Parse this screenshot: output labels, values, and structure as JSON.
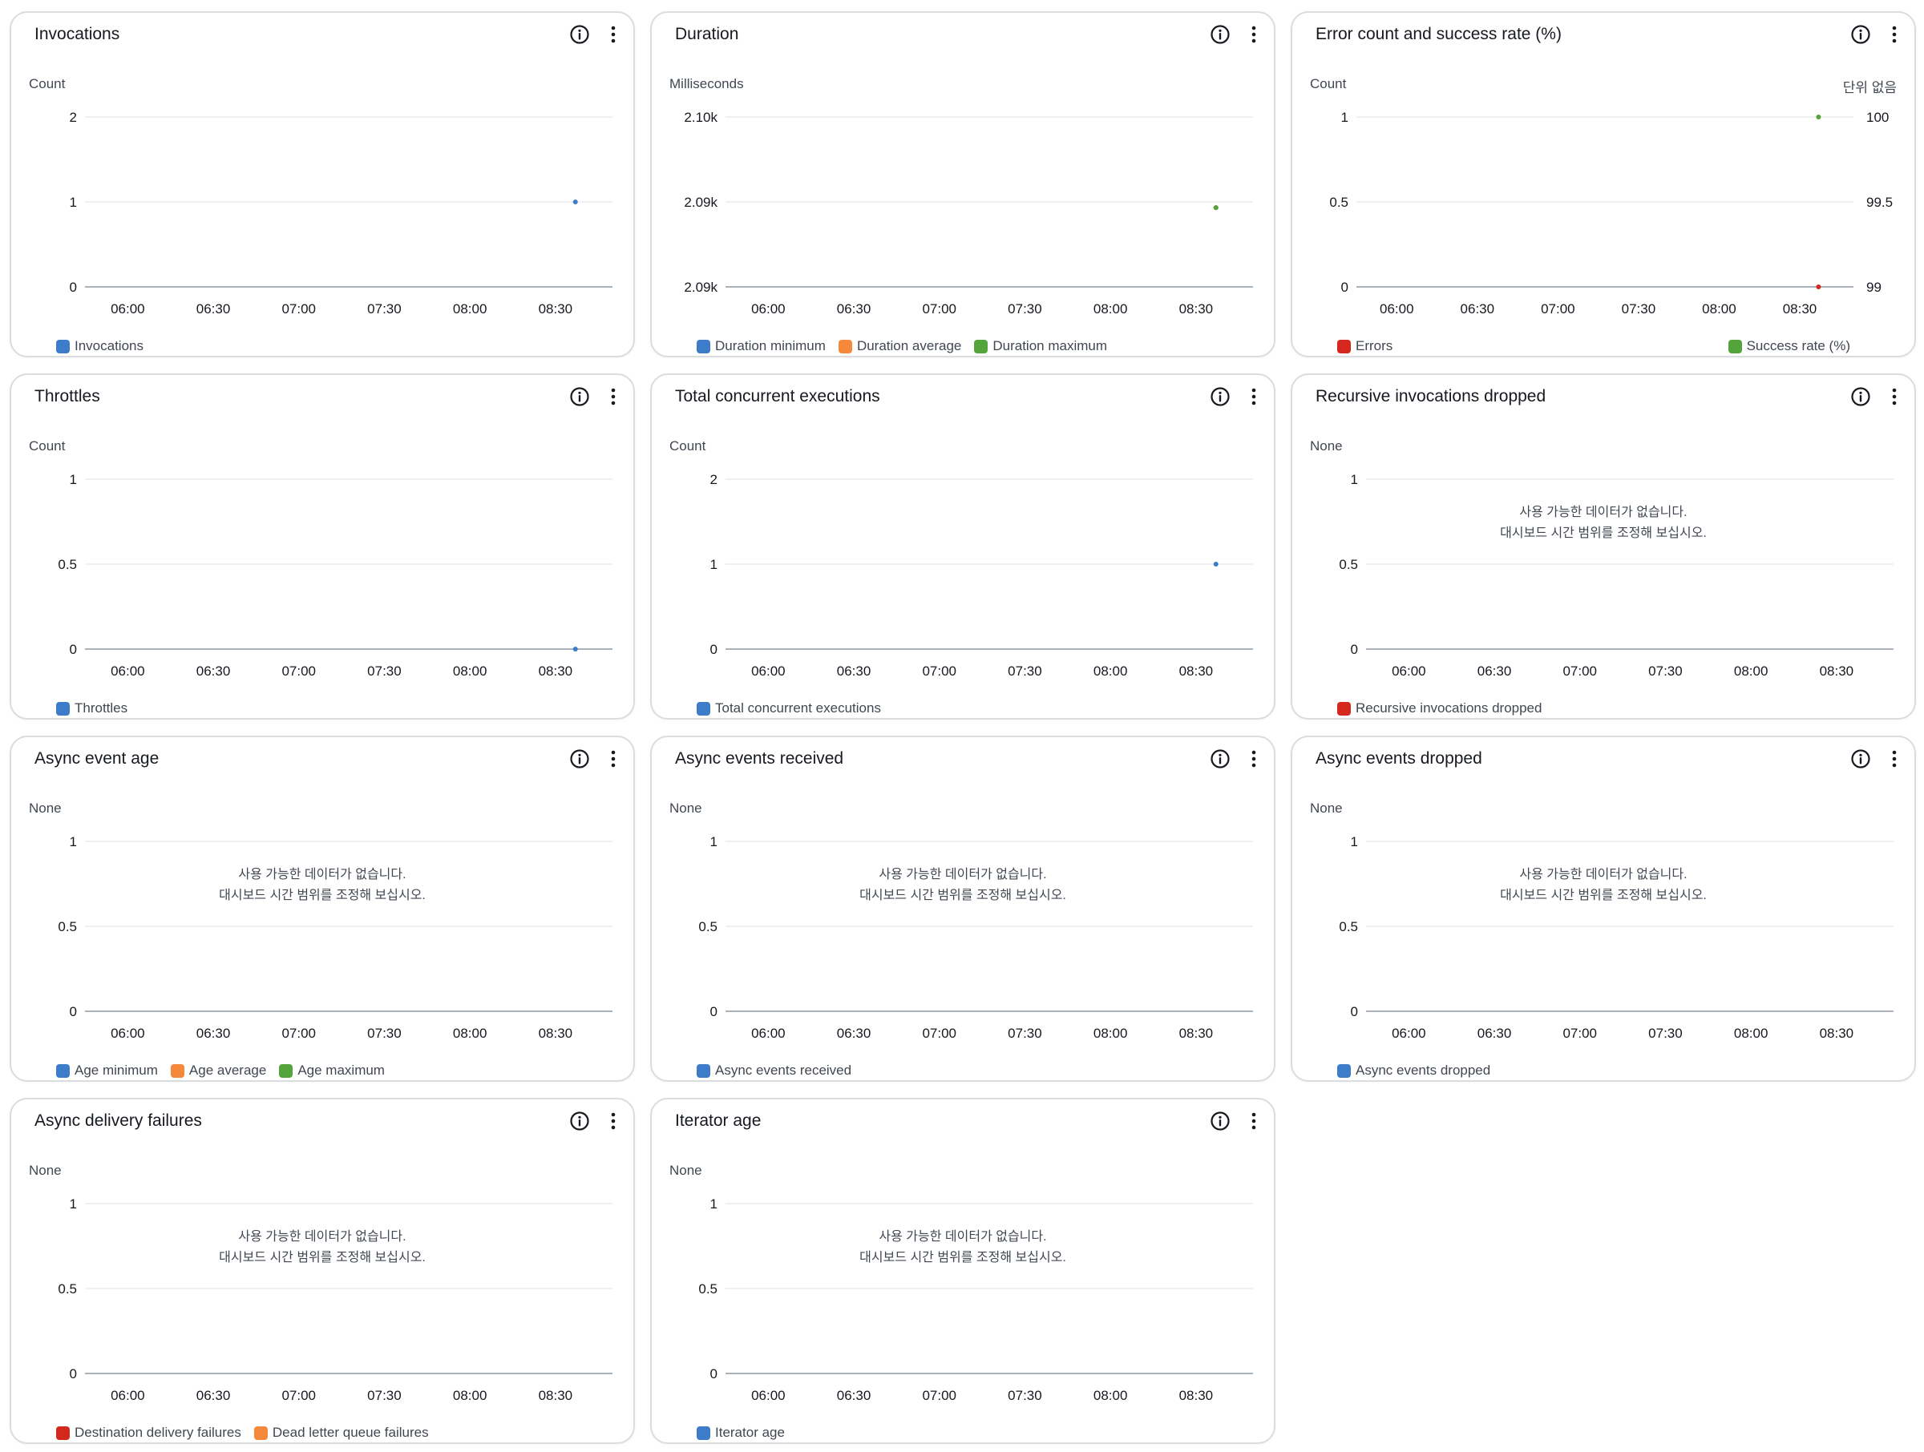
{
  "no_data_message": {
    "line1": "사용 가능한 데이터가 없습니다.",
    "line2": "대시보드 시간 범위를 조정해 보십시오."
  },
  "colors": {
    "blue": "#3d7cc9",
    "orange": "#f5883b",
    "green": "#54a43c",
    "red": "#d4281e"
  },
  "time_ticks": [
    "06:00",
    "06:30",
    "07:00",
    "07:30",
    "08:00",
    "08:30"
  ],
  "widgets": [
    {
      "title": "Invocations",
      "unit": "Count",
      "y_ticks": [
        "0",
        "1",
        "2"
      ],
      "no_data": false,
      "legend": [
        {
          "label": "Invocations",
          "color": "#3d7cc9"
        }
      ],
      "chart_data": {
        "type": "scatter",
        "ylim": [
          0,
          2
        ],
        "series": [
          {
            "name": "Invocations",
            "color": "#3d7cc9",
            "x": [
              "08:37"
            ],
            "values": [
              1
            ]
          }
        ]
      }
    },
    {
      "title": "Duration",
      "unit": "Milliseconds",
      "y_ticks": [
        "2.09k",
        "2.09k",
        "2.10k"
      ],
      "no_data": false,
      "legend": [
        {
          "label": "Duration minimum",
          "color": "#3d7cc9"
        },
        {
          "label": "Duration average",
          "color": "#f5883b"
        },
        {
          "label": "Duration maximum",
          "color": "#54a43c"
        }
      ],
      "chart_data": {
        "type": "scatter",
        "ylim": [
          2085,
          2100
        ],
        "series": [
          {
            "name": "Duration minimum",
            "color": "#3d7cc9",
            "x": [
              "08:37"
            ],
            "values": [
              2092
            ]
          },
          {
            "name": "Duration average",
            "color": "#f5883b",
            "x": [
              "08:37"
            ],
            "values": [
              2092
            ]
          },
          {
            "name": "Duration maximum",
            "color": "#54a43c",
            "x": [
              "08:37"
            ],
            "values": [
              2092
            ]
          }
        ]
      }
    },
    {
      "title": "Error count and success rate (%)",
      "unit": "Count",
      "unit_right": "단위 없음",
      "y_ticks": [
        "0",
        "0.5",
        "1"
      ],
      "y_ticks_right": [
        "99",
        "99.5",
        "100"
      ],
      "no_data": false,
      "legend": [
        {
          "label": "Errors",
          "color": "#d4281e"
        },
        {
          "label": "Success rate (%)",
          "color": "#54a43c",
          "align": "right"
        }
      ],
      "chart_data": {
        "type": "scatter",
        "ylim": [
          0,
          1
        ],
        "ylim_right": [
          99,
          100
        ],
        "series": [
          {
            "name": "Errors",
            "color": "#d4281e",
            "x": [
              "08:37"
            ],
            "values": [
              0
            ]
          },
          {
            "name": "Success rate (%)",
            "color": "#54a43c",
            "axis": "right",
            "x": [
              "08:37"
            ],
            "values": [
              100
            ]
          }
        ]
      }
    },
    {
      "title": "Throttles",
      "unit": "Count",
      "y_ticks": [
        "0",
        "0.5",
        "1"
      ],
      "no_data": false,
      "legend": [
        {
          "label": "Throttles",
          "color": "#3d7cc9"
        }
      ],
      "chart_data": {
        "type": "scatter",
        "ylim": [
          0,
          1
        ],
        "series": [
          {
            "name": "Throttles",
            "color": "#3d7cc9",
            "x": [
              "08:37"
            ],
            "values": [
              0
            ]
          }
        ]
      }
    },
    {
      "title": "Total concurrent executions",
      "unit": "Count",
      "y_ticks": [
        "0",
        "1",
        "2"
      ],
      "no_data": false,
      "legend": [
        {
          "label": "Total concurrent executions",
          "color": "#3d7cc9"
        }
      ],
      "chart_data": {
        "type": "scatter",
        "ylim": [
          0,
          2
        ],
        "series": [
          {
            "name": "Total concurrent executions",
            "color": "#3d7cc9",
            "x": [
              "08:37"
            ],
            "values": [
              1
            ]
          }
        ]
      }
    },
    {
      "title": "Recursive invocations dropped",
      "unit": "None",
      "y_ticks": [
        "0",
        "0.5",
        "1"
      ],
      "no_data": true,
      "legend": [
        {
          "label": "Recursive invocations dropped",
          "color": "#d4281e"
        }
      ],
      "chart_data": {
        "type": "scatter",
        "ylim": [
          0,
          1
        ],
        "series": []
      }
    },
    {
      "title": "Async event age",
      "unit": "None",
      "y_ticks": [
        "0",
        "0.5",
        "1"
      ],
      "no_data": true,
      "legend": [
        {
          "label": "Age minimum",
          "color": "#3d7cc9"
        },
        {
          "label": "Age average",
          "color": "#f5883b"
        },
        {
          "label": "Age maximum",
          "color": "#54a43c"
        }
      ],
      "chart_data": {
        "type": "scatter",
        "ylim": [
          0,
          1
        ],
        "series": []
      }
    },
    {
      "title": "Async events received",
      "unit": "None",
      "y_ticks": [
        "0",
        "0.5",
        "1"
      ],
      "no_data": true,
      "legend": [
        {
          "label": "Async events received",
          "color": "#3d7cc9"
        }
      ],
      "chart_data": {
        "type": "scatter",
        "ylim": [
          0,
          1
        ],
        "series": []
      }
    },
    {
      "title": "Async events dropped",
      "unit": "None",
      "y_ticks": [
        "0",
        "0.5",
        "1"
      ],
      "no_data": true,
      "legend": [
        {
          "label": "Async events dropped",
          "color": "#3d7cc9"
        }
      ],
      "chart_data": {
        "type": "scatter",
        "ylim": [
          0,
          1
        ],
        "series": []
      }
    },
    {
      "title": "Async delivery failures",
      "unit": "None",
      "y_ticks": [
        "0",
        "0.5",
        "1"
      ],
      "no_data": true,
      "legend": [
        {
          "label": "Destination delivery failures",
          "color": "#d4281e"
        },
        {
          "label": "Dead letter queue failures",
          "color": "#f5883b"
        }
      ],
      "chart_data": {
        "type": "scatter",
        "ylim": [
          0,
          1
        ],
        "series": []
      }
    },
    {
      "title": "Iterator age",
      "unit": "None",
      "y_ticks": [
        "0",
        "0.5",
        "1"
      ],
      "no_data": true,
      "legend": [
        {
          "label": "Iterator age",
          "color": "#3d7cc9"
        }
      ],
      "chart_data": {
        "type": "scatter",
        "ylim": [
          0,
          1
        ],
        "series": []
      }
    }
  ]
}
